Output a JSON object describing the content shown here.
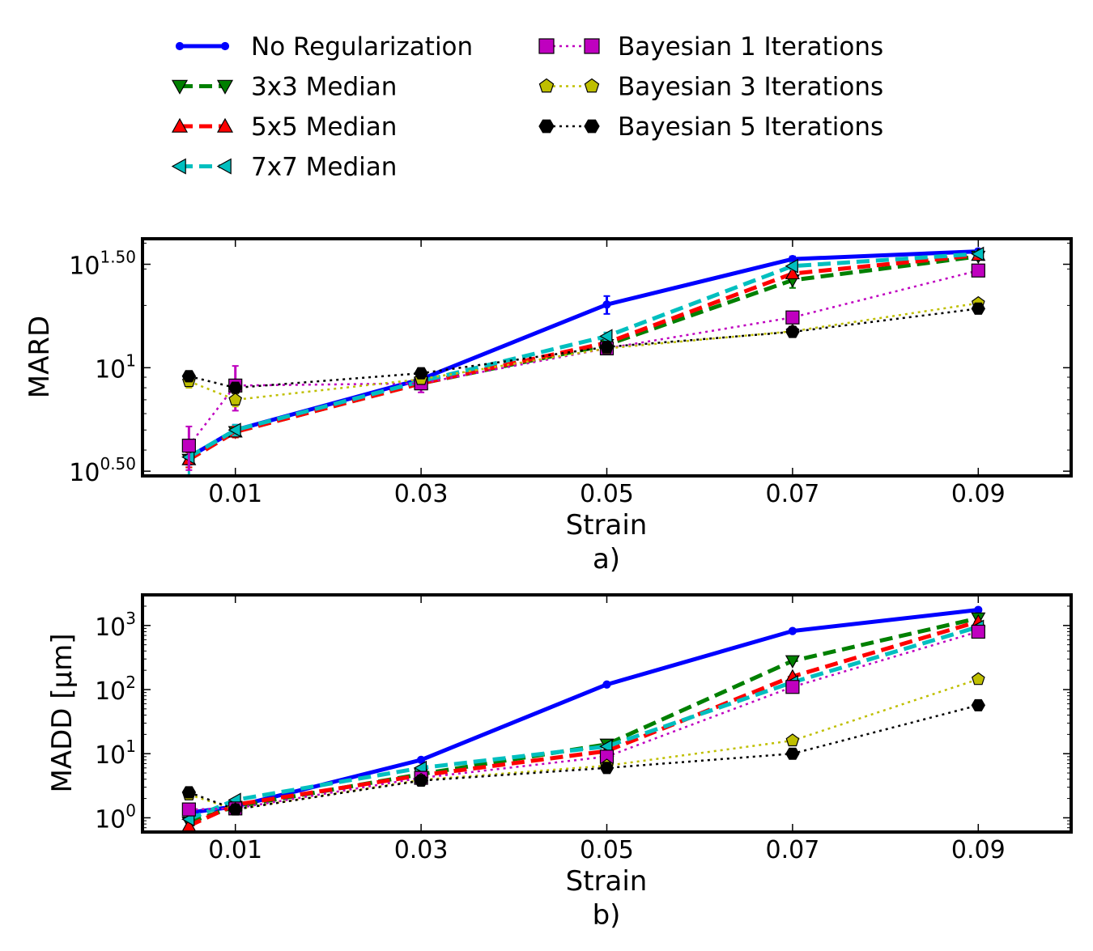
{
  "legend": {
    "placement": "top",
    "entries": [
      {
        "label": "No Regularization",
        "series": 0
      },
      {
        "label": "3x3 Median",
        "series": 1
      },
      {
        "label": "5x5 Median",
        "series": 2
      },
      {
        "label": "7x7 Median",
        "series": 3
      },
      {
        "label": "Bayesian 1 Iterations",
        "series": 4
      },
      {
        "label": "Bayesian 3 Iterations",
        "series": 5
      },
      {
        "label": "Bayesian 5 Iterations",
        "series": 6
      }
    ]
  },
  "colors": {
    "no_reg": "#0000ff",
    "med3": "#008000",
    "med5": "#ff0000",
    "med7": "#00bfbf",
    "bayes1": "#bf00bf",
    "bayes3": "#bfbf00",
    "bayes5": "#000000"
  },
  "chart_data": [
    {
      "type": "line",
      "panel_label": "a)",
      "xlabel": "Strain",
      "ylabel": "MARD",
      "yscale": "log",
      "xlim": [
        0,
        0.1
      ],
      "ylim": [
        3.0,
        42.0
      ],
      "xticks": [
        "0.01",
        "0.03",
        "0.05",
        "0.07",
        "0.09"
      ],
      "yticks": [
        {
          "value": 3.162,
          "base": "10",
          "exp": "0.50"
        },
        {
          "value": 10,
          "base": "10",
          "exp": "1"
        },
        {
          "value": 31.62,
          "base": "10",
          "exp": "1.50"
        }
      ],
      "x": [
        0.005,
        0.01,
        0.03,
        0.05,
        0.07,
        0.09
      ],
      "series": [
        {
          "name": "No Regularization",
          "style": "no_reg",
          "values": [
            3.7,
            5.0,
            8.8,
            20.2,
            33.5,
            36.5
          ],
          "errors": [
            0.3,
            0.3,
            0.4,
            2.0,
            1.0,
            1.0
          ]
        },
        {
          "name": "3x3 Median",
          "style": "med3",
          "values": [
            3.6,
            4.9,
            8.4,
            12.9,
            26.5,
            34.5
          ],
          "errors": [
            0.3,
            0.3,
            0.4,
            0.6,
            2.2,
            1.0
          ]
        },
        {
          "name": "5x5 Median",
          "style": "med5",
          "values": [
            3.6,
            4.9,
            8.4,
            13.2,
            28.5,
            35.0
          ],
          "errors": [
            0.3,
            0.3,
            0.4,
            0.6,
            1.5,
            1.0
          ]
        },
        {
          "name": "7x7 Median",
          "style": "med7",
          "values": [
            3.7,
            5.0,
            8.6,
            14.2,
            31.0,
            35.5
          ],
          "errors": [
            0.8,
            0.3,
            0.4,
            0.6,
            1.2,
            1.0
          ]
        },
        {
          "name": "Bayesian 1 Iterations",
          "style": "bayes1",
          "values": [
            4.2,
            8.2,
            8.4,
            12.4,
            17.5,
            29.5
          ],
          "errors": [
            1.0,
            2.0,
            0.8,
            0.5,
            0.8,
            0.8
          ]
        },
        {
          "name": "Bayesian 3 Iterations",
          "style": "bayes3",
          "values": [
            8.6,
            7.0,
            8.8,
            12.4,
            15.0,
            20.5
          ],
          "errors": [
            0.6,
            0.5,
            0.4,
            0.4,
            0.4,
            0.5
          ]
        },
        {
          "name": "Bayesian 5 Iterations",
          "style": "bayes5",
          "values": [
            9.1,
            8.0,
            9.4,
            12.6,
            14.9,
            19.3
          ],
          "errors": [
            0.5,
            0.4,
            0.4,
            0.4,
            0.4,
            0.4
          ]
        }
      ]
    },
    {
      "type": "line",
      "panel_label": "b)",
      "xlabel": "Strain",
      "ylabel": "MADD [μm]",
      "yscale": "log",
      "xlim": [
        0,
        0.1
      ],
      "ylim": [
        0.6,
        3000
      ],
      "xticks": [
        "0.01",
        "0.03",
        "0.05",
        "0.07",
        "0.09"
      ],
      "yticks": [
        {
          "value": 1,
          "base": "10",
          "exp": "0"
        },
        {
          "value": 10,
          "base": "10",
          "exp": "1"
        },
        {
          "value": 100,
          "base": "10",
          "exp": "2"
        },
        {
          "value": 1000,
          "base": "10",
          "exp": "3"
        }
      ],
      "x": [
        0.005,
        0.01,
        0.03,
        0.05,
        0.07,
        0.09
      ],
      "series": [
        {
          "name": "No Regularization",
          "style": "no_reg",
          "values": [
            1.2,
            1.5,
            8.0,
            120,
            820,
            1750
          ]
        },
        {
          "name": "3x3 Median",
          "style": "med3",
          "values": [
            0.85,
            1.5,
            4.8,
            14.0,
            280,
            1300
          ]
        },
        {
          "name": "5x5 Median",
          "style": "med5",
          "values": [
            0.75,
            1.6,
            4.6,
            11.0,
            160,
            1150
          ]
        },
        {
          "name": "7x7 Median",
          "style": "med7",
          "values": [
            0.95,
            1.9,
            6.0,
            13.0,
            130,
            950
          ]
        },
        {
          "name": "Bayesian 1 Iterations",
          "style": "bayes1",
          "values": [
            1.35,
            1.4,
            4.2,
            9.0,
            110,
            800
          ]
        },
        {
          "name": "Bayesian 3 Iterations",
          "style": "bayes3",
          "values": [
            2.3,
            1.35,
            3.9,
            6.5,
            16,
            145
          ]
        },
        {
          "name": "Bayesian 5 Iterations",
          "style": "bayes5",
          "values": [
            2.5,
            1.35,
            3.8,
            6.0,
            10,
            57
          ]
        }
      ]
    }
  ]
}
